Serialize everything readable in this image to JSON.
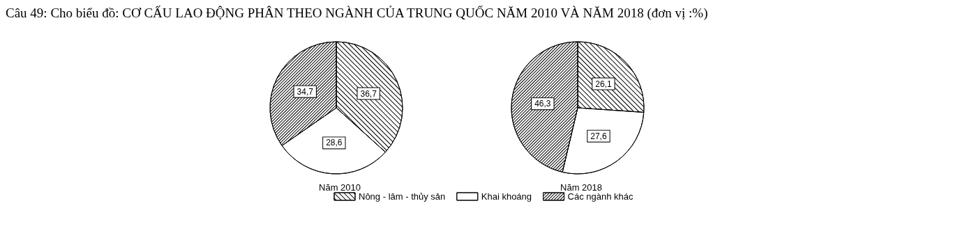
{
  "chart_data": {
    "type": "pie",
    "title": "Câu 49: Cho biểu đồ: CƠ CẤU LAO ĐỘNG PHÂN THEO NGÀNH CỦA TRUNG QUỐC NĂM 2010 VÀ NĂM 2018  (đơn vị :%)",
    "categories": [
      "Nông - lâm - thủy sản",
      "Khai khoáng",
      "Các ngành khác"
    ],
    "colors": [
      "#ffffff",
      "#ffffff",
      "#ffffff"
    ],
    "series": [
      {
        "name": "Năm 2010",
        "values": [
          36.7,
          28.6,
          34.7
        ],
        "value_labels": [
          "36,7",
          "28,6",
          "34,7"
        ]
      },
      {
        "name": "Năm 2018",
        "values": [
          26.1,
          27.6,
          46.3
        ],
        "value_labels": [
          "26,1",
          "27,6",
          "46,3"
        ]
      }
    ],
    "legend": "bottom"
  }
}
